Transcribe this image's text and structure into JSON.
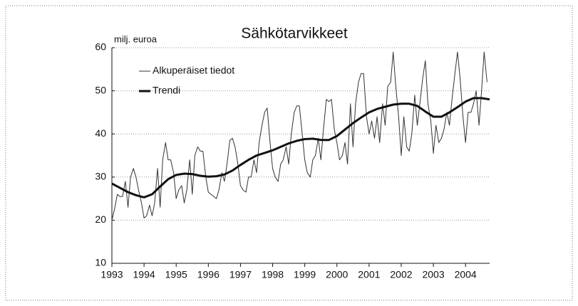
{
  "chart_data": {
    "type": "line",
    "title": "Sähkötarvikkeet",
    "ylabel": "milj. euroa",
    "xlim": [
      1993,
      2004.75
    ],
    "xticks": [
      1993,
      1994,
      1995,
      1996,
      1997,
      1998,
      1999,
      2000,
      2001,
      2002,
      2003,
      2004
    ],
    "ylim": [
      10,
      60
    ],
    "yticks": [
      10,
      20,
      30,
      40,
      50,
      60
    ],
    "grid": true,
    "legend": "upper left",
    "series": [
      {
        "name": "Alkuperäiset tiedot",
        "color": "#333333",
        "x": [
          1993,
          1993.08,
          1993.17,
          1993.25,
          1993.33,
          1993.42,
          1993.5,
          1993.58,
          1993.67,
          1993.75,
          1993.83,
          1993.92,
          1994,
          1994.08,
          1994.17,
          1994.25,
          1994.33,
          1994.42,
          1994.5,
          1994.58,
          1994.67,
          1994.75,
          1994.83,
          1994.92,
          1995,
          1995.08,
          1995.17,
          1995.25,
          1995.33,
          1995.42,
          1995.5,
          1995.58,
          1995.67,
          1995.75,
          1995.83,
          1995.92,
          1996,
          1996.08,
          1996.17,
          1996.25,
          1996.33,
          1996.42,
          1996.5,
          1996.58,
          1996.67,
          1996.75,
          1996.83,
          1996.92,
          1997,
          1997.08,
          1997.17,
          1997.25,
          1997.33,
          1997.42,
          1997.5,
          1997.58,
          1997.67,
          1997.75,
          1997.83,
          1997.92,
          1998,
          1998.08,
          1998.17,
          1998.25,
          1998.33,
          1998.42,
          1998.5,
          1998.58,
          1998.67,
          1998.75,
          1998.83,
          1998.92,
          1999,
          1999.08,
          1999.17,
          1999.25,
          1999.33,
          1999.42,
          1999.5,
          1999.58,
          1999.67,
          1999.75,
          1999.83,
          1999.92,
          2000,
          2000.08,
          2000.17,
          2000.25,
          2000.33,
          2000.42,
          2000.5,
          2000.58,
          2000.67,
          2000.75,
          2000.83,
          2000.92,
          2001,
          2001.08,
          2001.17,
          2001.25,
          2001.33,
          2001.42,
          2001.5,
          2001.58,
          2001.67,
          2001.75,
          2001.83,
          2001.92,
          2002,
          2002.08,
          2002.17,
          2002.25,
          2002.33,
          2002.42,
          2002.5,
          2002.58,
          2002.67,
          2002.75,
          2002.83,
          2002.92,
          2003,
          2003.08,
          2003.17,
          2003.25,
          2003.33,
          2003.42,
          2003.5,
          2003.58,
          2003.67,
          2003.75,
          2003.83,
          2003.92,
          2004,
          2004.08,
          2004.17,
          2004.25,
          2004.33,
          2004.42,
          2004.5,
          2004.58,
          2004.67
        ],
        "values": [
          20,
          22.5,
          26,
          25.5,
          25.5,
          29,
          23,
          30,
          32,
          30,
          27,
          24,
          20.5,
          21,
          23.5,
          21,
          24,
          32,
          23,
          34,
          38,
          34,
          34,
          31,
          25,
          27,
          28,
          24,
          27,
          34,
          26,
          35,
          37,
          36,
          36,
          30,
          26.5,
          26,
          25.5,
          25,
          27,
          31,
          29,
          33,
          38.5,
          39,
          37,
          33,
          28,
          27,
          26.5,
          30,
          30,
          34,
          31,
          38,
          42,
          45,
          46,
          38,
          32,
          30,
          29,
          33,
          34,
          37,
          33,
          40,
          45,
          46.5,
          46.5,
          40,
          34,
          31,
          30,
          34,
          35,
          39,
          34,
          41,
          48,
          47.5,
          48,
          41,
          38,
          34,
          35,
          38,
          33,
          47,
          37,
          47,
          52,
          54,
          54,
          44,
          40,
          43,
          39,
          44,
          38,
          47,
          42,
          51,
          52,
          59,
          51,
          44,
          35,
          44,
          37,
          36,
          40,
          49,
          42,
          47,
          53,
          57,
          47,
          43,
          35.5,
          42,
          38,
          39,
          41,
          45,
          42,
          48,
          54,
          59,
          53,
          44,
          38,
          45,
          45,
          47,
          50,
          42,
          50,
          59,
          52
        ]
      },
      {
        "name": "Trendi",
        "color": "#111111",
        "x": [
          1993,
          1993.25,
          1993.5,
          1993.75,
          1994,
          1994.25,
          1994.5,
          1994.75,
          1995,
          1995.25,
          1995.5,
          1995.75,
          1996,
          1996.25,
          1996.5,
          1996.75,
          1997,
          1997.25,
          1997.5,
          1997.75,
          1998,
          1998.25,
          1998.5,
          1998.75,
          1999,
          1999.25,
          1999.5,
          1999.75,
          2000,
          2000.25,
          2000.5,
          2000.75,
          2001,
          2001.25,
          2001.5,
          2001.75,
          2002,
          2002.25,
          2002.5,
          2002.75,
          2003,
          2003.25,
          2003.5,
          2003.75,
          2004,
          2004.25,
          2004.5,
          2004.75
        ],
        "values": [
          28.5,
          27.5,
          26.5,
          25.8,
          25.3,
          26,
          27.8,
          29.5,
          30.5,
          30.8,
          30.7,
          30.3,
          30.1,
          30.2,
          30.6,
          31.5,
          32.8,
          34,
          35,
          35.6,
          36.2,
          37,
          37.8,
          38.4,
          38.8,
          38.9,
          38.6,
          38.6,
          39.5,
          41,
          42.5,
          43.8,
          45,
          45.8,
          46.3,
          46.8,
          47,
          47,
          46.5,
          45.2,
          44,
          44,
          45,
          46.2,
          47.5,
          48.3,
          48.3,
          48
        ]
      }
    ]
  }
}
